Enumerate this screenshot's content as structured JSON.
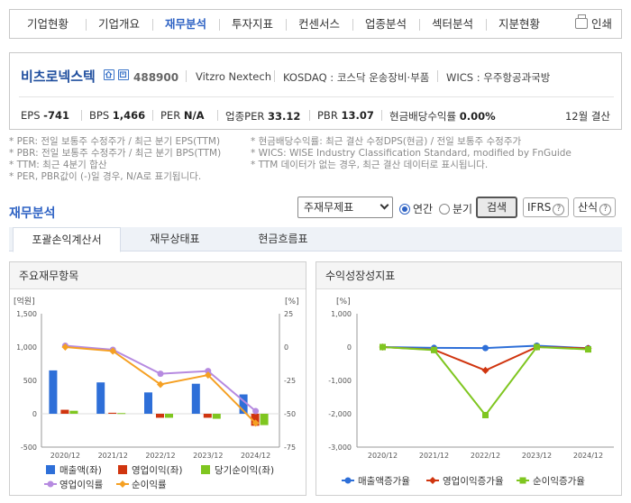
{
  "nav": {
    "items": [
      "기업현황",
      "기업개요",
      "재무분석",
      "투자지표",
      "컨센서스",
      "업종분석",
      "섹터분석",
      "지분현황"
    ],
    "active_index": 2,
    "print_label": "인쇄"
  },
  "company": {
    "name": "비츠로넥스텍",
    "code": "488900",
    "english_name": "Vitzro Nextech",
    "market": "KOSDAQ : 코스닥 운송장비·부품",
    "wics": "WICS : 우주항공과국방",
    "settlement": "12월 결산"
  },
  "metrics": [
    {
      "label": "EPS",
      "value": "-741"
    },
    {
      "label": "BPS",
      "value": "1,466"
    },
    {
      "label": "PER",
      "value": "N/A"
    },
    {
      "label": "업종PER",
      "value": "33.12"
    },
    {
      "label": "PBR",
      "value": "13.07"
    },
    {
      "label": "현금배당수익률",
      "value": "0.00%"
    }
  ],
  "notes": {
    "per": "* PER: 전일 보통주 수정주가 / 최근 분기 EPS(TTM)",
    "pbr": "* PBR: 전일 보통주 수정주가 / 최근 분기 BPS(TTM)",
    "ttm": "* TTM: 최근 4분기 합산",
    "neg": "* PER, PBR값이 (-)일 경우, N/A로 표기됩니다.",
    "div": "* 현금배당수익률: 최근 결산 수정DPS(현금) / 전일 보통주 수정주가",
    "wics": "* WICS: WISE Industry Classification Standard, modified by FnGuide",
    "ttm2": "* TTM 데이터가 없는 경우, 최근 결산 데이터로 표시됩니다."
  },
  "section": {
    "title": "재무분석",
    "select_value": "주재무제표",
    "radio_annual": "연간",
    "radio_quarter": "분기",
    "search_label": "검색",
    "ifrs_label": "IFRS",
    "calc_label": "산식",
    "help_symbol": "?"
  },
  "tabs": [
    "포괄손익계산서",
    "재무상태표",
    "현금흐름표"
  ],
  "left_panel_title": "주요재무항목",
  "right_panel_title": "수익성장성지표",
  "colors": {
    "accent": "#2f63c4",
    "sales": "#2e6fd8",
    "op_income": "#d0350f",
    "net_income": "#7fc620",
    "op_margin": "#b68ae0",
    "net_margin": "#f5a023",
    "growth_sales": "#2e6fd8",
    "growth_op": "#d0350f",
    "growth_net": "#7fc620"
  },
  "chart_data": [
    {
      "type": "bar",
      "categories": [
        "2020/12",
        "2021/12",
        "2022/12",
        "2023/12",
        "2024/12"
      ],
      "ylabel_left": "[억원]",
      "ylabel_right": "[%]",
      "ylim_left": [
        -500,
        1500
      ],
      "ylim_right": [
        -75,
        25
      ],
      "yticks_left": [
        "-500",
        "0",
        "500",
        "1,000",
        "1,500"
      ],
      "yticks_right": [
        "-75",
        "-50",
        "-25",
        "0",
        "25"
      ],
      "series": [
        {
          "name": "매출액(좌)",
          "kind": "bar",
          "axis": "left",
          "values": [
            650,
            470,
            320,
            450,
            290
          ]
        },
        {
          "name": "영업이익(좌)",
          "kind": "bar",
          "axis": "left",
          "values": [
            60,
            15,
            -60,
            -60,
            -180
          ]
        },
        {
          "name": "당기순이익(좌)",
          "kind": "bar",
          "axis": "left",
          "values": [
            45,
            10,
            -60,
            -75,
            -170
          ]
        },
        {
          "name": "영업이익률",
          "kind": "line",
          "axis": "right",
          "values": [
            1,
            -2,
            -20,
            -18,
            -48
          ]
        },
        {
          "name": "순이익률",
          "kind": "line",
          "axis": "right",
          "values": [
            0,
            -3,
            -28,
            -21,
            -57
          ]
        }
      ],
      "legend_placement": "bottom"
    },
    {
      "type": "line",
      "categories": [
        "2020/12",
        "2021/12",
        "2022/12",
        "2023/12",
        "2024/12"
      ],
      "ylabel": "[%]",
      "ylim": [
        -3000,
        1000
      ],
      "yticks": [
        "-3,000",
        "-2,000",
        "-1,000",
        "0",
        "1,000"
      ],
      "series": [
        {
          "name": "매출액증가율",
          "values": [
            0,
            -25,
            -30,
            40,
            -35
          ]
        },
        {
          "name": "영업이익증가율",
          "values": [
            0,
            -80,
            -700,
            0,
            -40
          ]
        },
        {
          "name": "순이익증가율",
          "values": [
            0,
            -90,
            -2040,
            0,
            -70
          ]
        }
      ],
      "legend_placement": "bottom"
    }
  ]
}
